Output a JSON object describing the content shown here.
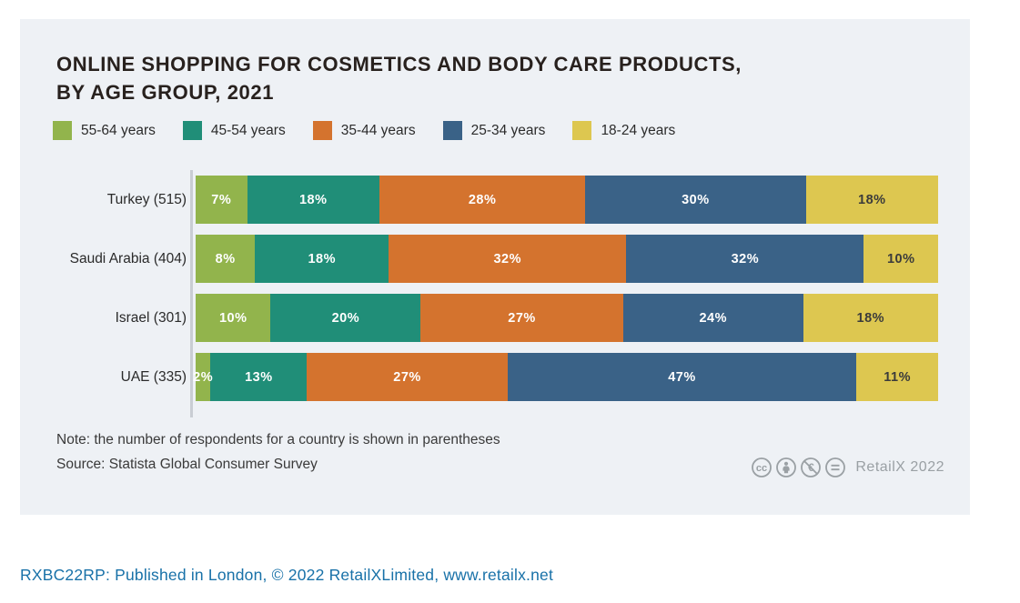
{
  "title": {
    "line1": "ONLINE SHOPPING FOR COSMETICS AND BODY CARE PRODUCTS,",
    "line2": "BY AGE GROUP, 2021"
  },
  "chart_data": {
    "type": "bar",
    "orientation": "horizontal-stacked",
    "title": "ONLINE SHOPPING FOR COSMETICS AND BODY CARE PRODUCTS, BY AGE GROUP, 2021",
    "categories": [
      "Turkey (515)",
      "Saudi Arabia (404)",
      "Israel (301)",
      "UAE (335)"
    ],
    "series": [
      {
        "name": "55-64 years",
        "color": "#92b44c",
        "label_color": "#ffffff",
        "values": [
          7,
          8,
          10,
          2
        ]
      },
      {
        "name": "45-54 years",
        "color": "#208e78",
        "label_color": "#ffffff",
        "values": [
          18,
          18,
          20,
          13
        ]
      },
      {
        "name": "35-44 years",
        "color": "#d4732e",
        "label_color": "#ffffff",
        "values": [
          28,
          32,
          27,
          27
        ]
      },
      {
        "name": "25-34 years",
        "color": "#3a6287",
        "label_color": "#ffffff",
        "values": [
          30,
          32,
          24,
          47
        ]
      },
      {
        "name": "18-24 years",
        "color": "#ddc750",
        "label_color": "#3b3b3b",
        "values": [
          18,
          10,
          18,
          11
        ]
      }
    ],
    "value_suffix": "%",
    "xlim": [
      0,
      100
    ],
    "legend_position": "top",
    "grid": false
  },
  "note": "Note: the number of respondents for a country is shown in parentheses",
  "source": "Source: Statista Global Consumer Survey",
  "badge": {
    "icons": [
      "cc-icon",
      "by-person-icon",
      "nc-euro-icon",
      "nd-equals-icon"
    ],
    "label": "RetailX 2022",
    "color": "#9aa0a4"
  },
  "footer": "RXBC22RP: Published in London, © 2022 RetailXLimited, www.retailx.net",
  "colors": {
    "card_background": "#eef1f5",
    "page_background": "#ffffff",
    "title_text": "#28211e",
    "axis_line": "#c9cdd3",
    "footer_text": "#1871a8"
  }
}
